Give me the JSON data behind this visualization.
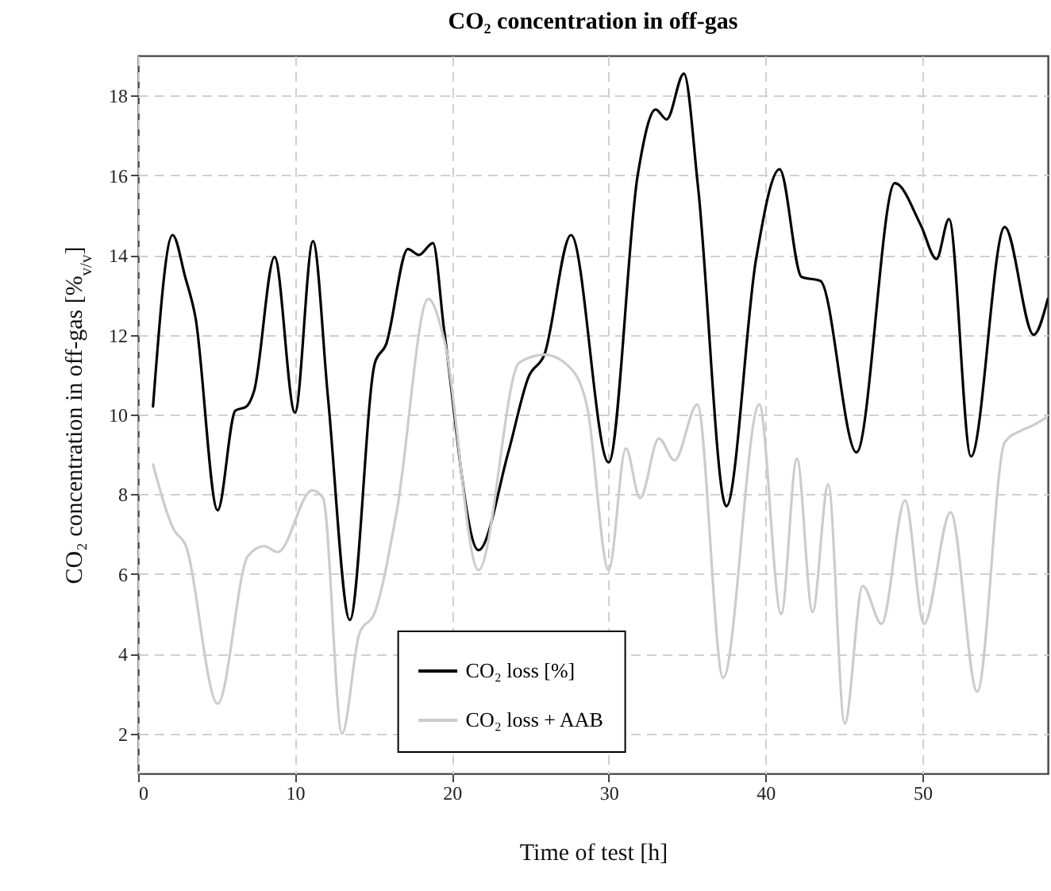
{
  "chart_data": {
    "type": "line",
    "title": "CO₂ concentration in off-gas",
    "xlabel": "Time of test [h]",
    "ylabel": "CO₂ concentration in off-gas [%$_{v/v}$]",
    "xlim": [
      0,
      58
    ],
    "xticks": [
      0,
      10,
      20,
      30,
      40,
      50
    ],
    "ylim": [
      1,
      19
    ],
    "yticks": [
      2,
      4,
      6,
      8,
      10,
      12,
      14,
      16,
      18
    ],
    "grid": true,
    "legend": "bottom",
    "line_style": "solid",
    "marker": "none",
    "series": [
      {
        "name": "CO₂ loss [%]",
        "color": "#000000",
        "x": [
          0.95,
          2.2,
          3.0,
          3.65,
          5.07,
          6.2,
          6.9,
          7.4,
          8.7,
          10.0,
          11.15,
          12.1,
          13.5,
          15.1,
          15.8,
          17.2,
          17.9,
          18.8,
          19.5,
          21.7,
          23.6,
          24.9,
          25.9,
          27.6,
          30.0,
          31.85,
          33.0,
          33.7,
          34.8,
          35.7,
          37.5,
          39.4,
          40.9,
          42.3,
          43.5,
          45.8,
          48.25,
          49.9,
          50.9,
          51.7,
          53.1,
          55.25,
          57.1,
          58
        ],
        "values": [
          10.2,
          14.5,
          13.45,
          12.45,
          7.6,
          10.1,
          10.2,
          10.6,
          13.95,
          10.05,
          14.35,
          10.45,
          4.85,
          11.3,
          11.75,
          14.15,
          14.0,
          14.3,
          12.15,
          6.6,
          9.05,
          10.95,
          11.5,
          14.5,
          8.8,
          16.0,
          17.65,
          17.4,
          18.55,
          15.7,
          7.7,
          13.9,
          16.15,
          13.45,
          13.35,
          9.05,
          15.8,
          14.75,
          13.9,
          14.9,
          8.95,
          14.7,
          12.0,
          12.9
        ]
      },
      {
        "name": "CO₂ loss + AAB",
        "color": "#cccccc",
        "x": [
          0.95,
          2.3,
          3.0,
          5.07,
          7.0,
          8.04,
          8.9,
          11.1,
          11.8,
          13.0,
          14.1,
          15.1,
          16.5,
          18.5,
          19.5,
          21.7,
          24.3,
          25.9,
          27.6,
          28.65,
          30.0,
          31.1,
          32.0,
          33.2,
          34.2,
          35.65,
          37.3,
          39.6,
          41.0,
          42.0,
          43.0,
          44.0,
          45.05,
          46.2,
          47.4,
          48.9,
          50.1,
          51.8,
          53.5,
          55.25,
          56.3,
          56.9,
          58
        ],
        "values": [
          8.75,
          7.1,
          6.75,
          2.75,
          6.45,
          6.7,
          6.55,
          8.1,
          7.9,
          2.0,
          4.5,
          5.05,
          7.6,
          12.9,
          11.9,
          6.1,
          11.3,
          11.5,
          11.15,
          10.15,
          6.1,
          9.15,
          7.9,
          9.4,
          8.85,
          10.25,
          3.4,
          10.25,
          5.0,
          8.9,
          5.05,
          8.25,
          2.25,
          5.7,
          4.75,
          7.85,
          4.75,
          7.55,
          3.05,
          9.3,
          9.6,
          9.7,
          9.95
        ]
      }
    ]
  }
}
